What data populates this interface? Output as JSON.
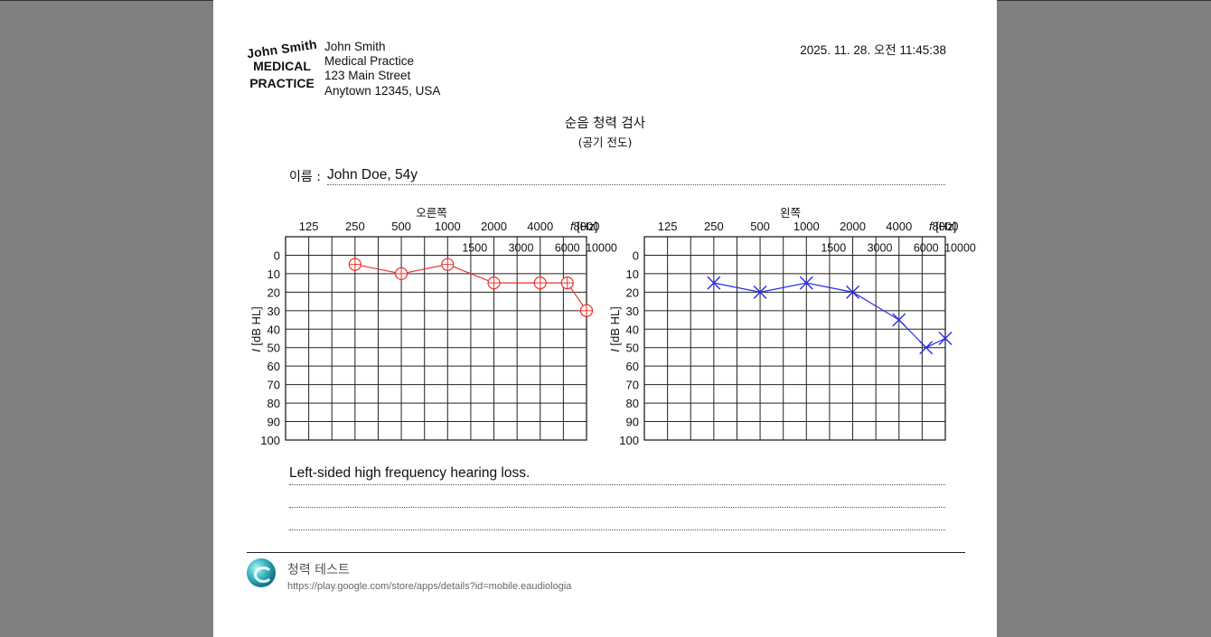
{
  "header": {
    "logo_lines": [
      "John Smith",
      "MEDICAL",
      "PRACTICE"
    ],
    "clinic_lines": [
      "John Smith",
      "Medical Practice",
      "123 Main Street",
      "Anytown 12345, USA"
    ],
    "datetime": "2025. 11. 28. 오전 11:45:38"
  },
  "report": {
    "title": "순음 청력 검사",
    "subtitle": "(공기 전도)",
    "name_label": "이름 :",
    "name_value": "John Doe, 54y"
  },
  "notes": [
    "Left-sided high frequency hearing loss.",
    "",
    ""
  ],
  "footer": {
    "app_name": "청력 테스트",
    "app_url": "https://play.google.com/store/apps/details?id=mobile.eaudiologia"
  },
  "colors": {
    "right_ear": "#e8312e",
    "left_ear": "#2a2af0",
    "grid": "#222222"
  },
  "icons": {
    "app": "audiology-app-icon"
  },
  "chart_data": [
    {
      "type": "line",
      "title": "오른쪽",
      "xlabel_prefix": "f",
      "xlabel_unit": "[Hz]",
      "ylabel_prefix": "I",
      "ylabel_unit": "[dB HL]",
      "x_ticks_top": [
        "125",
        "250",
        "500",
        "1000",
        "2000",
        "4000",
        "8000"
      ],
      "x_ticks_mid": [
        "1500",
        "3000",
        "6000",
        "10000"
      ],
      "y_ticks": [
        "0",
        "10",
        "20",
        "30",
        "40",
        "50",
        "60",
        "70",
        "80",
        "90",
        "100"
      ],
      "ylim": [
        -10,
        100
      ],
      "y_inverted": true,
      "marker": "circle",
      "color": "#e8312e",
      "x": [
        250,
        500,
        1000,
        2000,
        4000,
        6000,
        8000
      ],
      "y": [
        5,
        10,
        5,
        15,
        15,
        15,
        30
      ]
    },
    {
      "type": "line",
      "title": "왼쪽",
      "xlabel_prefix": "f",
      "xlabel_unit": "[Hz]",
      "ylabel_prefix": "I",
      "ylabel_unit": "[dB HL]",
      "x_ticks_top": [
        "125",
        "250",
        "500",
        "1000",
        "2000",
        "4000",
        "8000"
      ],
      "x_ticks_mid": [
        "1500",
        "3000",
        "6000",
        "10000"
      ],
      "y_ticks": [
        "0",
        "10",
        "20",
        "30",
        "40",
        "50",
        "60",
        "70",
        "80",
        "90",
        "100"
      ],
      "ylim": [
        -10,
        100
      ],
      "y_inverted": true,
      "marker": "x",
      "color": "#2a2af0",
      "x": [
        250,
        500,
        1000,
        2000,
        4000,
        6000,
        8000
      ],
      "y": [
        15,
        20,
        15,
        20,
        35,
        50,
        45
      ]
    }
  ]
}
